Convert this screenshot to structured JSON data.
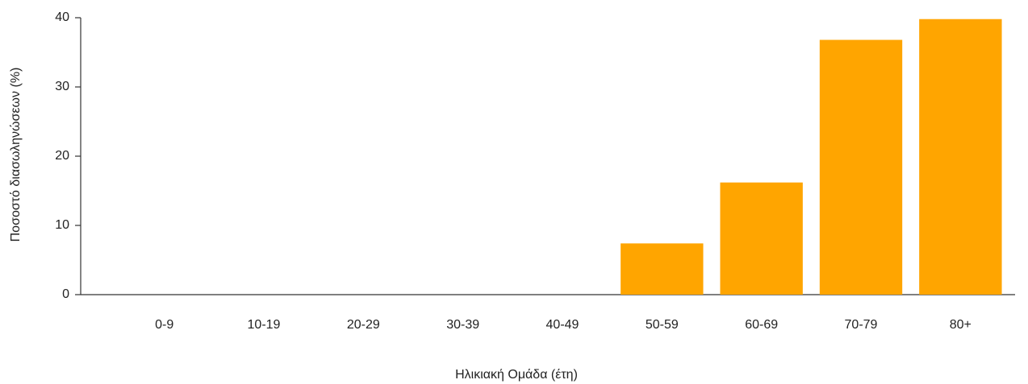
{
  "chart_data": {
    "type": "bar",
    "x_label": "Ηλικιακή Ομάδα (έτη)",
    "y_label": "Ποσοστό διασωληνώσεων (%)",
    "categories": [
      "0-9",
      "10-19",
      "20-29",
      "30-39",
      "40-49",
      "50-59",
      "60-69",
      "70-79",
      "80+"
    ],
    "values": [
      0,
      0,
      0,
      0,
      0,
      7.4,
      16.2,
      36.8,
      39.8
    ],
    "color": "#ffa500",
    "ylim": [
      0,
      40
    ],
    "yticks": [
      0,
      10,
      20,
      30,
      40
    ],
    "grid": false
  }
}
